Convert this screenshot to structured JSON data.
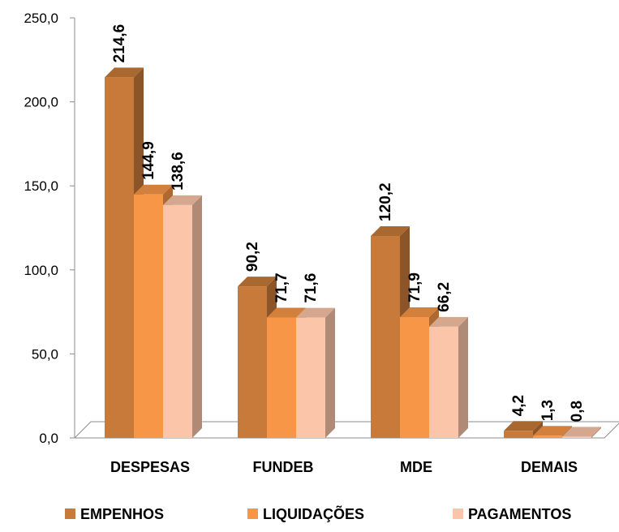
{
  "chart_data": {
    "type": "bar",
    "categories": [
      "DESPESAS",
      "FUNDEB",
      "MDE",
      "DEMAIS"
    ],
    "series": [
      {
        "name": "EMPENHOS",
        "values": [
          214.6,
          90.2,
          120.2,
          4.2
        ],
        "labels": [
          "214,6",
          "90,2",
          "120,2",
          "4,2"
        ],
        "color": "#c87a3a"
      },
      {
        "name": "LIQUIDAÇÕES",
        "values": [
          144.9,
          71.7,
          71.9,
          1.3
        ],
        "labels": [
          "144,9",
          "71,7",
          "71,9",
          "1,3"
        ],
        "color": "#f79646"
      },
      {
        "name": "PAGAMENTOS",
        "values": [
          138.6,
          71.6,
          66.2,
          0.8
        ],
        "labels": [
          "138,6",
          "71,6",
          "66,2",
          "0,8"
        ],
        "color": "#fac5a8"
      }
    ],
    "yticks": [
      "0,0",
      "50,0",
      "100,0",
      "150,0",
      "200,0",
      "250,0"
    ],
    "ylim": [
      0,
      250
    ],
    "legend_position": "bottom",
    "grid": false
  }
}
